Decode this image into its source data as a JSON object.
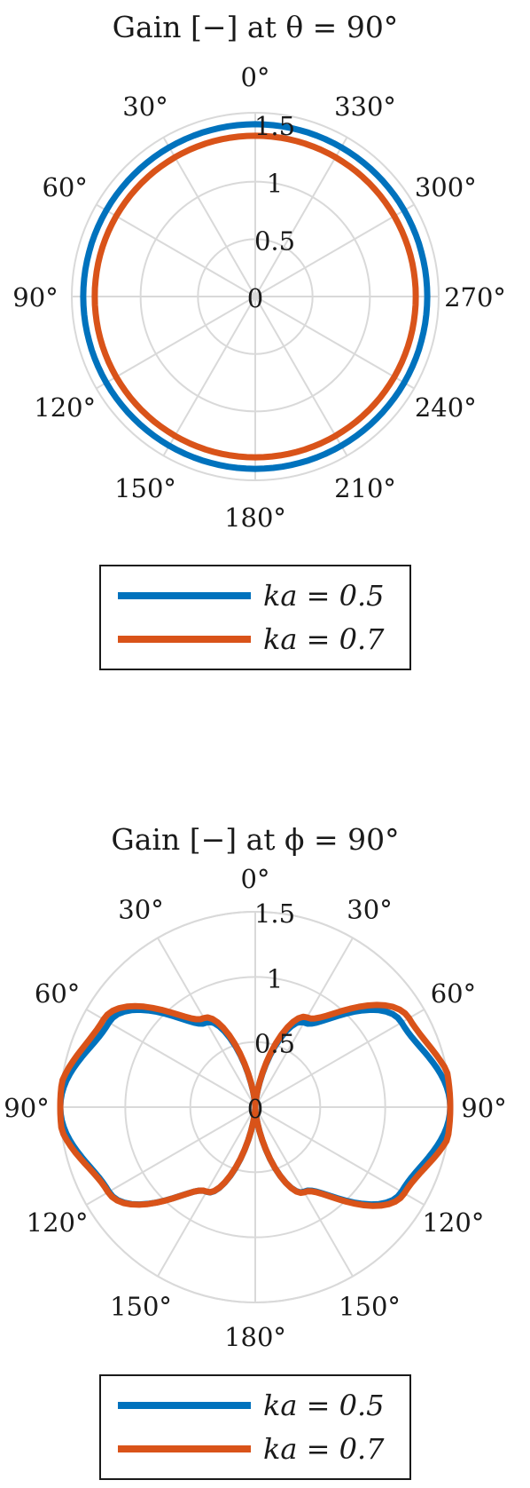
{
  "chart_data": [
    {
      "type": "polar",
      "title": "Gain [−] at θ = 90°",
      "angle_ticks": [
        "0°",
        "330°",
        "300°",
        "270°",
        "240°",
        "210°",
        "180°",
        "150°",
        "120°",
        "90°",
        "60°",
        "30°"
      ],
      "angle_tick_positions_deg": [
        0,
        330,
        300,
        270,
        240,
        210,
        180,
        150,
        120,
        90,
        60,
        30
      ],
      "angle_direction": "counterclockwise",
      "zero_location": "top",
      "radial_ticks": [
        "0",
        "0.5",
        "1",
        "1.5"
      ],
      "radial_tick_values": [
        0,
        0.5,
        1,
        1.5
      ],
      "rlim": [
        0,
        1.6
      ],
      "grid": true,
      "legend_location": "below",
      "series": [
        {
          "name": "ka = 0.5",
          "color": "#0072BD",
          "angle_deg": [
            0,
            90,
            180,
            270,
            360
          ],
          "r": [
            1.5,
            1.5,
            1.5,
            1.5,
            1.5
          ]
        },
        {
          "name": "ka = 0.7",
          "color": "#D95319",
          "angle_deg": [
            0,
            90,
            180,
            270,
            360
          ],
          "r": [
            1.4,
            1.4,
            1.4,
            1.4,
            1.4
          ]
        }
      ]
    },
    {
      "type": "polar",
      "title": "Gain [−] at ϕ = 90°",
      "angle_ticks": [
        "0°",
        "30°",
        "60°",
        "90°",
        "120°",
        "150°",
        "180°",
        "150°",
        "120°",
        "90°",
        "60°",
        "30°"
      ],
      "angle_tick_positions_deg": [
        0,
        30,
        60,
        90,
        120,
        150,
        180,
        210,
        240,
        270,
        300,
        330
      ],
      "angle_direction": "clockwise",
      "zero_location": "top",
      "radial_ticks": [
        "0",
        "0.5",
        "1",
        "1.5"
      ],
      "radial_tick_values": [
        0,
        0.5,
        1,
        1.5
      ],
      "rlim": [
        0,
        1.5
      ],
      "grid": true,
      "legend_location": "below",
      "series": [
        {
          "name": "ka = 0.5",
          "color": "#0072BD",
          "angle_deg": [
            0,
            30,
            60,
            90,
            120,
            150,
            180
          ],
          "r": [
            0.0,
            0.75,
            1.3,
            1.5,
            1.3,
            0.75,
            0.0
          ]
        },
        {
          "name": "ka = 0.7",
          "color": "#D95319",
          "angle_deg": [
            0,
            30,
            60,
            90,
            120,
            150,
            180
          ],
          "r": [
            0.0,
            0.78,
            1.32,
            1.49,
            1.28,
            0.74,
            0.0
          ]
        }
      ]
    }
  ],
  "legend": {
    "entries": [
      {
        "label": "ka = 0.5",
        "color": "#0072BD"
      },
      {
        "label": "ka = 0.7",
        "color": "#D95319"
      }
    ]
  }
}
